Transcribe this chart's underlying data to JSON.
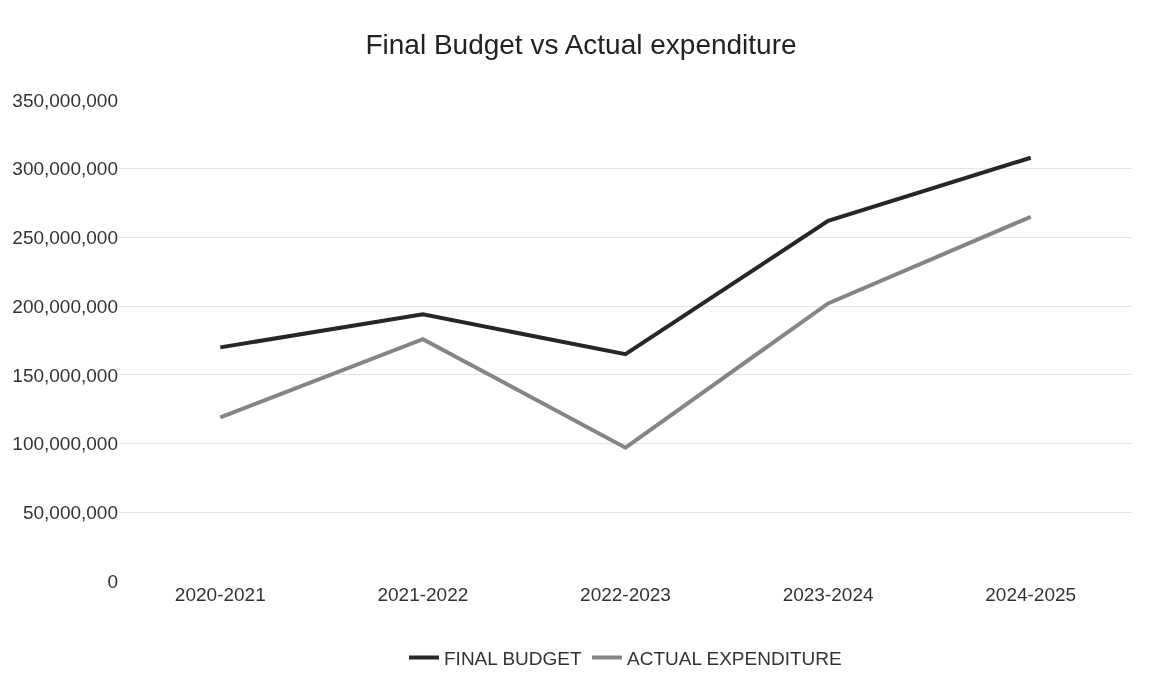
{
  "chart_data": {
    "type": "line",
    "title": "Final Budget vs Actual expenditure",
    "categories": [
      "2020-2021",
      "2021-2022",
      "2022-2023",
      "2023-2024",
      "2024-2025"
    ],
    "series": [
      {
        "name": "FINAL BUDGET",
        "color": "#262626",
        "values": [
          170000000,
          194000000,
          165000000,
          262000000,
          308000000
        ]
      },
      {
        "name": "ACTUAL EXPENDITURE",
        "color": "#858585",
        "values": [
          119000000,
          176000000,
          97000000,
          202000000,
          265000000
        ]
      }
    ],
    "ylim": [
      0,
      350000000
    ],
    "yticks": [
      {
        "value": 0,
        "label": "0"
      },
      {
        "value": 50000000,
        "label": "50,000,000"
      },
      {
        "value": 100000000,
        "label": "100,000,000"
      },
      {
        "value": 150000000,
        "label": "150,000,000"
      },
      {
        "value": 200000000,
        "label": "200,000,000"
      },
      {
        "value": 250000000,
        "label": "250,000,000"
      },
      {
        "value": 300000000,
        "label": "300,000,000"
      },
      {
        "value": 350000000,
        "label": "350,000,000"
      }
    ],
    "grid": "y",
    "legend": "bottom",
    "marker": "none",
    "line_style": "solid"
  }
}
